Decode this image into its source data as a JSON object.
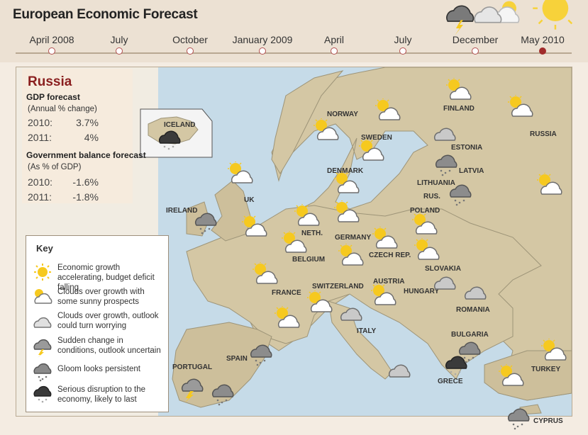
{
  "title": "European Economic Forecast",
  "timeline": [
    {
      "label": "April 2008",
      "active": false
    },
    {
      "label": "July",
      "active": false
    },
    {
      "label": "October",
      "active": false
    },
    {
      "label": "January 2009",
      "active": false
    },
    {
      "label": "April",
      "active": false
    },
    {
      "label": "July",
      "active": false
    },
    {
      "label": "December",
      "active": false
    },
    {
      "label": "May 2010",
      "active": true
    }
  ],
  "info": {
    "country": "Russia",
    "gdp_label": "GDP forecast",
    "gdp_sub": "(Annual % change)",
    "gdp_rows": [
      {
        "year": "2010:",
        "value": "3.7%"
      },
      {
        "year": "2011:",
        "value": "4%"
      }
    ],
    "gov_label": "Government balance forecast",
    "gov_sub": "(As % of GDP)",
    "gov_rows": [
      {
        "year": "2010:",
        "value": "-1.6%"
      },
      {
        "year": "2011:",
        "value": "-1.8%"
      }
    ]
  },
  "key": {
    "title": "Key",
    "items": [
      {
        "icon": "sun-icon",
        "text": "Economic growth accelerating, budget deficit falling"
      },
      {
        "icon": "sun-cloud-icon",
        "text": "Clouds over growth with some sunny prospects"
      },
      {
        "icon": "cloud-icon",
        "text": "Clouds over growth, outlook could turn worrying"
      },
      {
        "icon": "lightning-cloud-icon",
        "text": "Sudden change in conditions, outlook uncertain"
      },
      {
        "icon": "rain-cloud-icon",
        "text": "Gloom looks persistent"
      },
      {
        "icon": "storm-cloud-icon",
        "text": "Serious disruption to the economy, likely to last"
      }
    ]
  },
  "countries": {
    "iceland": "ICELAND",
    "norway": "NORWAY",
    "sweden": "SWEDEN",
    "finland": "FINLAND",
    "russia": "RUSSIA",
    "estonia": "ESTONIA",
    "latvia": "LATVIA",
    "lithuania": "LITHUANIA",
    "rus": "RUS.",
    "denmark": "DENMARK",
    "ireland": "IRELAND",
    "uk": "UK",
    "neth": "NETH.",
    "germany": "GERMANY",
    "poland": "POLAND",
    "belgium": "BELGIUM",
    "czech": "CZECH REP.",
    "slovakia": "SLOVAKIA",
    "france": "FRANCE",
    "switzerland": "SWITZERLAND",
    "austria": "AUSTRIA",
    "hungary": "HUNGARY",
    "romania": "ROMANIA",
    "italy": "ITALY",
    "bulgaria": "BULGARIA",
    "spain": "SPAIN",
    "portugal": "PORTUGAL",
    "greece": "GRECE",
    "turkey": "TURKEY",
    "cyprus": "CYPRUS"
  },
  "colors": {
    "accent": "#8a1f1f",
    "sun": "#f6c91f",
    "cloud_grey": "#a8a8a8",
    "cloud_dark": "#444444",
    "sea": "#c6dbe8",
    "land": "#d4c7a4"
  }
}
